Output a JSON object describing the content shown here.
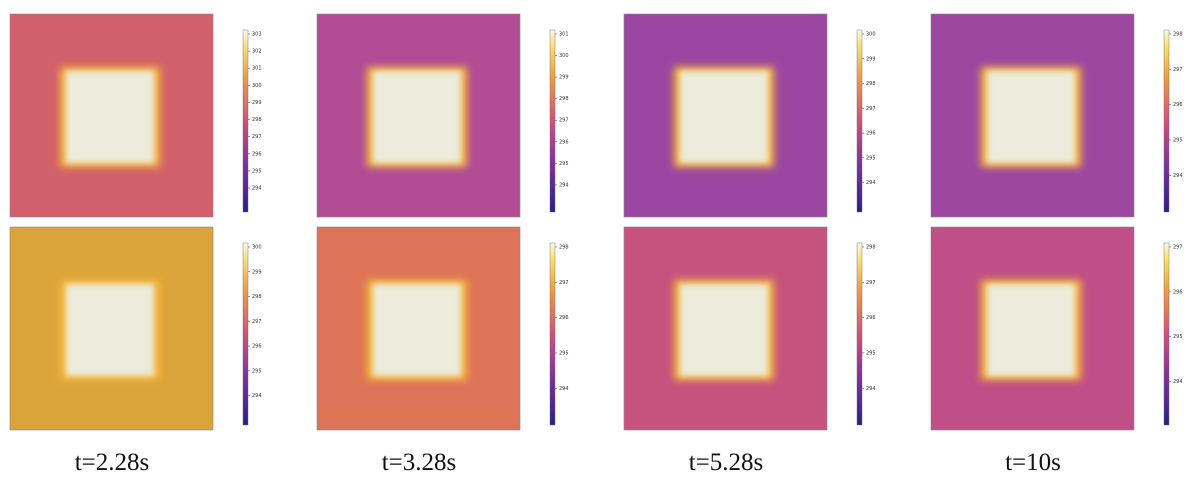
{
  "panels": [
    {
      "ticks": [
        "303",
        "302",
        "301",
        "300",
        "299",
        "298",
        "297",
        "296",
        "295",
        "294"
      ]
    },
    {
      "ticks": [
        "301",
        "300",
        "299",
        "298",
        "297",
        "296",
        "295",
        "294"
      ]
    },
    {
      "ticks": [
        "300",
        "299",
        "298",
        "297",
        "296",
        "295",
        "294"
      ]
    },
    {
      "ticks": [
        "298",
        "297",
        "296",
        "295",
        "294"
      ]
    },
    {
      "ticks": [
        "300",
        "299",
        "298",
        "297",
        "296",
        "295",
        "294"
      ]
    },
    {
      "ticks": [
        "298",
        "297",
        "296",
        "295",
        "294"
      ]
    },
    {
      "ticks": [
        "298",
        "297",
        "296",
        "295",
        "294"
      ]
    },
    {
      "ticks": [
        "297",
        "296",
        "295",
        "294"
      ]
    }
  ],
  "captions": [
    "t=2.28s",
    "t=3.28s",
    "t=5.28s",
    "t=10s"
  ]
}
